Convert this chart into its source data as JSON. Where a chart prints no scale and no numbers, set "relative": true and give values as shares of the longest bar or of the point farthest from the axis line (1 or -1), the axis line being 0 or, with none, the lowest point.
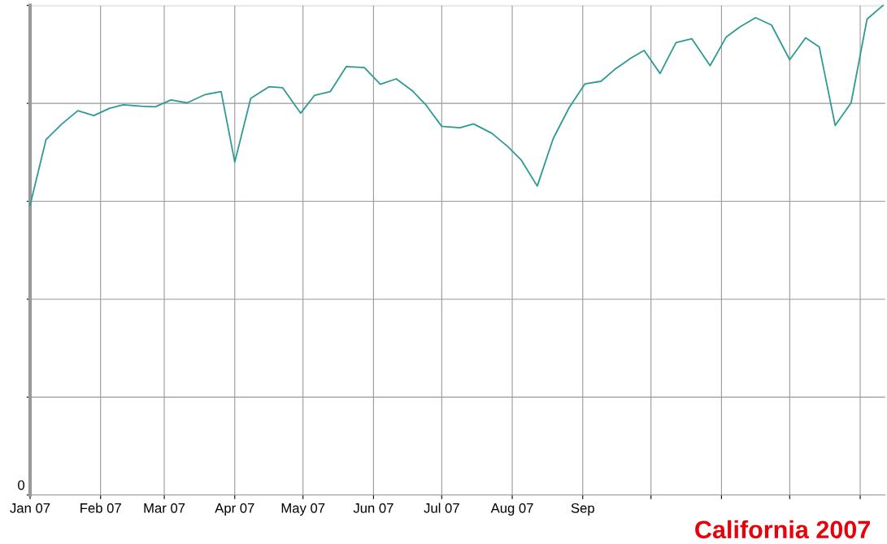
{
  "chart_data": {
    "type": "line",
    "relative": true,
    "grid": true,
    "x": [
      "2007-01-01",
      "2007-01-08",
      "2007-01-15",
      "2007-01-22",
      "2007-01-29",
      "2007-02-05",
      "2007-02-11",
      "2007-02-19",
      "2007-02-25",
      "2007-03-04",
      "2007-03-11",
      "2007-03-19",
      "2007-03-26",
      "2007-04-01",
      "2007-04-08",
      "2007-04-16",
      "2007-04-22",
      "2007-04-30",
      "2007-05-06",
      "2007-05-13",
      "2007-05-20",
      "2007-05-28",
      "2007-06-04",
      "2007-06-11",
      "2007-06-18",
      "2007-06-24",
      "2007-07-01",
      "2007-07-09",
      "2007-07-15",
      "2007-07-23",
      "2007-07-30",
      "2007-08-05",
      "2007-08-12",
      "2007-08-19",
      "2007-08-26",
      "2007-09-02",
      "2007-09-09",
      "2007-09-15",
      "2007-09-22",
      "2007-09-28",
      "2007-10-05",
      "2007-10-12",
      "2007-10-19",
      "2007-10-27",
      "2007-11-03",
      "2007-11-09",
      "2007-11-16",
      "2007-11-23",
      "2007-12-01",
      "2007-12-08",
      "2007-12-14",
      "2007-12-21",
      "2007-12-28",
      "2008-01-04",
      "2008-01-11"
    ],
    "series": [
      {
        "color": "#2e9a94",
        "values": [
          0.592,
          0.726,
          0.758,
          0.785,
          0.775,
          0.79,
          0.797,
          0.794,
          0.793,
          0.807,
          0.801,
          0.818,
          0.824,
          0.68,
          0.81,
          0.834,
          0.832,
          0.78,
          0.816,
          0.824,
          0.875,
          0.873,
          0.839,
          0.85,
          0.826,
          0.797,
          0.753,
          0.75,
          0.758,
          0.739,
          0.712,
          0.684,
          0.631,
          0.728,
          0.791,
          0.84,
          0.845,
          0.869,
          0.892,
          0.908,
          0.861,
          0.924,
          0.932,
          0.877,
          0.935,
          0.956,
          0.975,
          0.96,
          0.889,
          0.934,
          0.915,
          0.755,
          0.801,
          0.972,
          1.0
        ]
      }
    ],
    "xlim": [
      "2007-01-01",
      "2008-01-12"
    ],
    "xticks": [
      {
        "value": "2007-01-01",
        "label": "Jan 07"
      },
      {
        "value": "2007-02-01",
        "label": "Feb 07"
      },
      {
        "value": "2007-03-01",
        "label": "Mar 07"
      },
      {
        "value": "2007-04-01",
        "label": "Apr 07"
      },
      {
        "value": "2007-05-01",
        "label": "May 07"
      },
      {
        "value": "2007-06-01",
        "label": "Jun 07"
      },
      {
        "value": "2007-07-01",
        "label": "Jul 07"
      },
      {
        "value": "2007-08-01",
        "label": "Aug 07"
      },
      {
        "value": "2007-09-01",
        "label": "Sep"
      },
      {
        "value": "2007-10-01",
        "label": null
      },
      {
        "value": "2007-11-01",
        "label": null
      },
      {
        "value": "2007-12-01",
        "label": null
      },
      {
        "value": "2008-01-01",
        "label": null
      }
    ],
    "annotations": [
      "0",
      "California 2007"
    ]
  }
}
